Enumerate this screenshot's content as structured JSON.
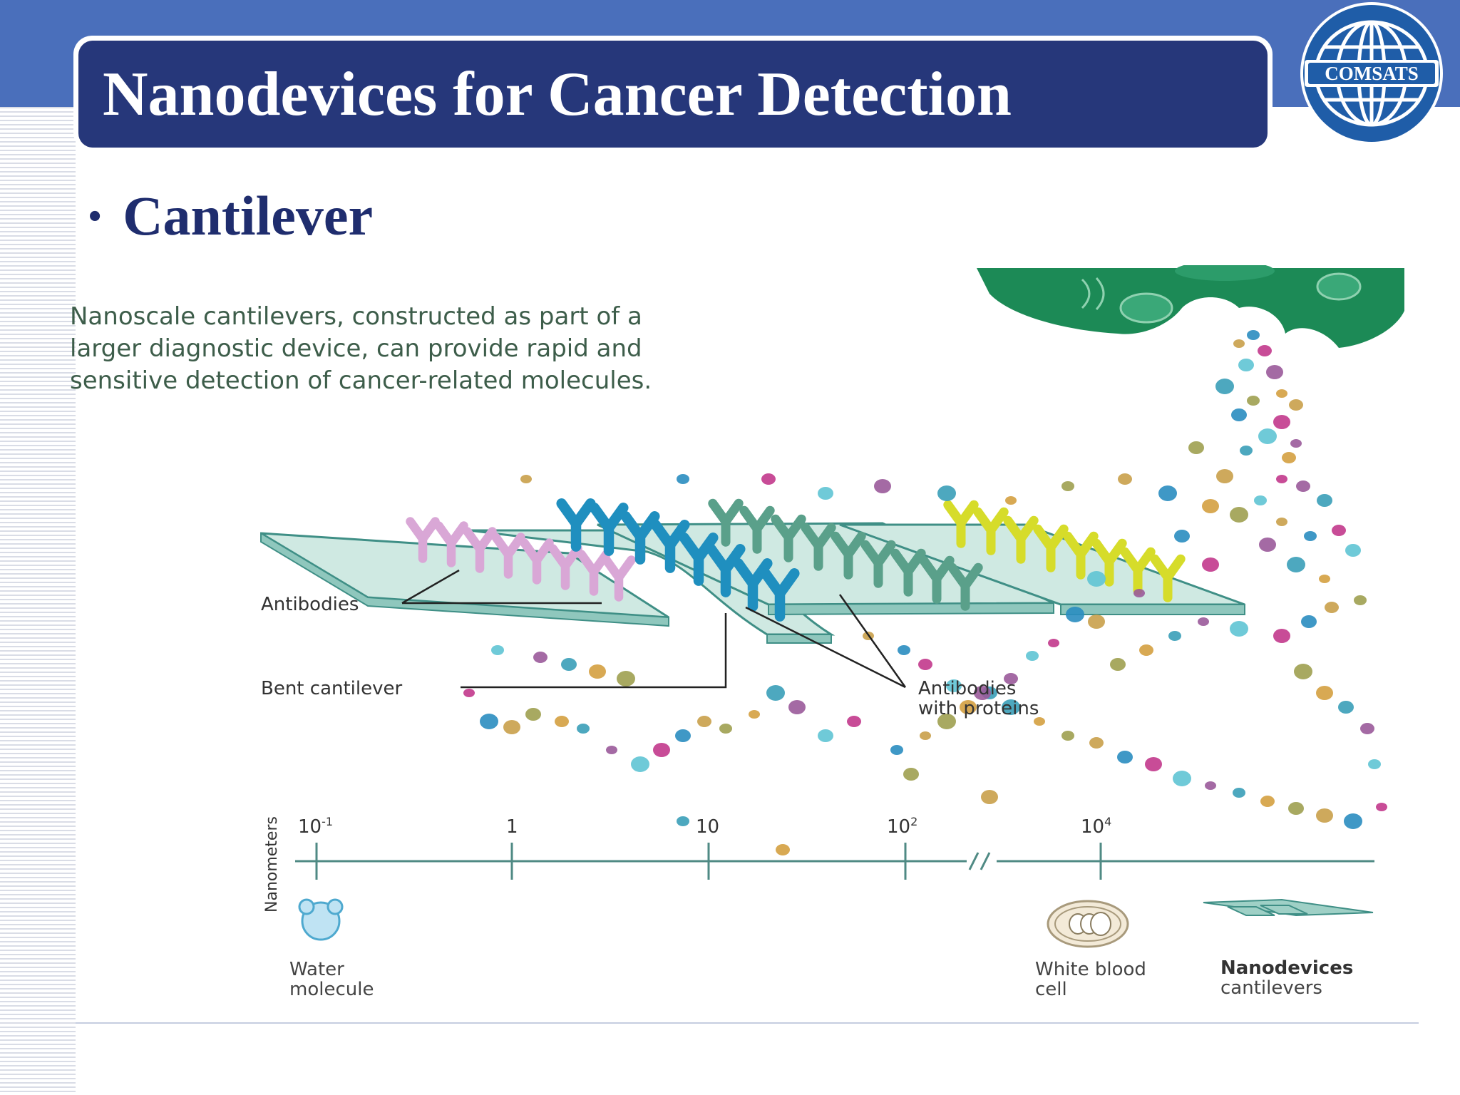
{
  "slide": {
    "title": "Nanodevices for Cancer Detection",
    "bullet_marker": "•",
    "bullet": "Cantilever",
    "logo_text": "COMSATS"
  },
  "figure": {
    "caption": "Nanoscale cantilevers, constructed as part of a larger diagnostic device, can provide rapid and sensitive detection of cancer-related molecules.",
    "labels": {
      "antibodies": "Antibodies",
      "bent_cantilever": "Bent cantilever",
      "antibodies_with_proteins_1": "Antibodies",
      "antibodies_with_proteins_2": "with proteins"
    },
    "scale": {
      "axis_label": "Nanometers",
      "ticks": [
        {
          "base": "10",
          "exp": "-1"
        },
        {
          "base": "1",
          "exp": ""
        },
        {
          "base": "10",
          "exp": ""
        },
        {
          "base": "10",
          "exp": "2"
        },
        {
          "base": "10",
          "exp": "4"
        }
      ],
      "items": {
        "water_1": "Water",
        "water_2": "molecule",
        "wbc_1": "White blood",
        "wbc_2": "cell",
        "nano_1": "Nanodevices",
        "nano_2": "cantilevers"
      }
    },
    "colors": {
      "cancer_cell": "#1c8a56",
      "cantilever_fill": "#bfe3dc",
      "cantilever_edge": "#3f8f86",
      "antibody_pink": "#d9a7d6",
      "antibody_blue": "#1f8fbf",
      "antibody_green": "#5aa08a",
      "antibody_yellow": "#d6dc2a"
    }
  }
}
